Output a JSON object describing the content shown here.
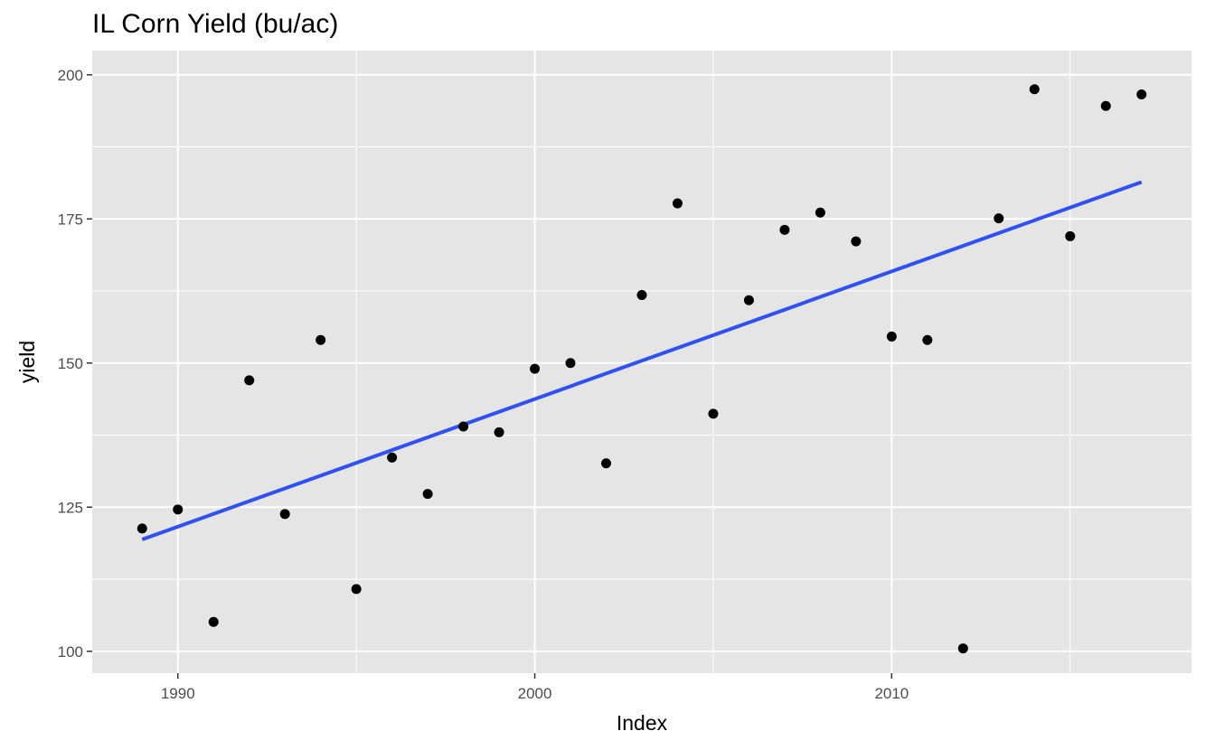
{
  "chart_data": {
    "type": "scatter",
    "title": "IL Corn Yield (bu/ac)",
    "xlabel": "Index",
    "ylabel": "yield",
    "xlim": [
      1987.6,
      2018.4
    ],
    "ylim": [
      96.2,
      204.2
    ],
    "x_ticks": [
      1990,
      2000,
      2010
    ],
    "y_ticks": [
      100,
      125,
      150,
      175,
      200
    ],
    "grid": true,
    "x": [
      1989,
      1990,
      1991,
      1992,
      1993,
      1994,
      1995,
      1996,
      1997,
      1998,
      1999,
      2000,
      2001,
      2002,
      2003,
      2004,
      2005,
      2006,
      2007,
      2008,
      2009,
      2010,
      2011,
      2012,
      2013,
      2014,
      2015,
      2016,
      2017
    ],
    "values": [
      121.3,
      124.6,
      105.1,
      147.0,
      123.8,
      154.0,
      110.8,
      133.6,
      127.3,
      139.0,
      138.0,
      149.0,
      150.0,
      132.6,
      161.8,
      177.7,
      141.2,
      160.9,
      173.1,
      176.1,
      171.1,
      154.6,
      154.0,
      100.5,
      175.1,
      197.5,
      172.0,
      194.6,
      196.6
    ],
    "fit_line": {
      "x": [
        1989,
        2017
      ],
      "y": [
        119.4,
        181.4
      ],
      "color": "#3050F0"
    },
    "colors": {
      "panel": "#E5E5E5",
      "grid": "#FFFFFF",
      "point": "#000000",
      "line": "#3050F0"
    }
  }
}
